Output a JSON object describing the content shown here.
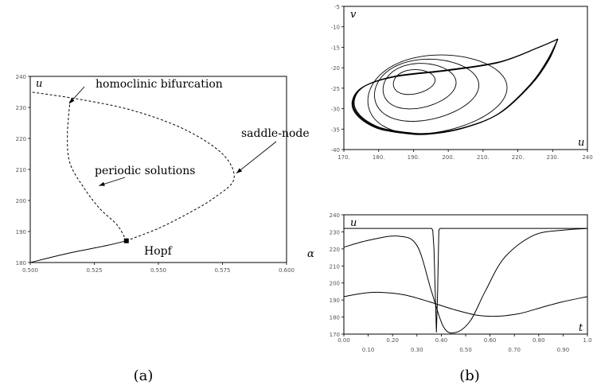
{
  "chart_data": [
    {
      "panel": "a",
      "type": "line",
      "caption": "(a)",
      "xlabel": "α",
      "ylabel": "u",
      "xlim": [
        0.5,
        0.6
      ],
      "ylim": [
        180,
        240
      ],
      "x_ticks": [
        "0.500",
        "0.525",
        "0.550",
        "0.575",
        "0.600"
      ],
      "y_ticks": [
        "180",
        "190",
        "200",
        "210",
        "220",
        "230",
        "240"
      ],
      "series": [
        {
          "style": "solid",
          "x": [
            0.5,
            0.515,
            0.53,
            0.5375
          ],
          "y": [
            180,
            183,
            185.5,
            187
          ]
        },
        {
          "style": "dashed",
          "x": [
            0.5375,
            0.55,
            0.562,
            0.572,
            0.5795,
            0.575,
            0.56,
            0.54,
            0.52,
            0.5
          ],
          "y": [
            187,
            191,
            196,
            201,
            207,
            215,
            223,
            229,
            232.5,
            235
          ]
        },
        {
          "style": "dashed",
          "x": [
            0.5375,
            0.534,
            0.527,
            0.521,
            0.5155,
            0.5145,
            0.5155
          ],
          "y": [
            187,
            192,
            197.5,
            204,
            212,
            221,
            232
          ]
        }
      ],
      "points": [
        {
          "label": "Hopf",
          "x": 0.5375,
          "y": 187
        }
      ],
      "annotations": [
        {
          "text": "homoclinic bifurcation",
          "x": 0.5155,
          "y": 232
        },
        {
          "text": "periodic solutions",
          "x": 0.5265,
          "y": 204
        },
        {
          "text": "saddle-node",
          "x": 0.5795,
          "y": 208
        },
        {
          "text": "Hopf",
          "x": 0.5385,
          "y": 183
        }
      ]
    },
    {
      "panel": "b-top",
      "type": "line",
      "xlabel": "u",
      "ylabel": "v",
      "xlim": [
        170,
        240
      ],
      "ylim": [
        -40,
        -5
      ],
      "x_ticks": [
        "170.",
        "180.",
        "190.",
        "200.",
        "210.",
        "220.",
        "230.",
        "240"
      ],
      "y_ticks": [
        "-5",
        "-10",
        "-15",
        "-20",
        "-25",
        "-30",
        "-35",
        "-40"
      ],
      "orbits": [
        {
          "ax": 6,
          "ay": 3,
          "c": [
            189.5,
            -23.5
          ]
        },
        {
          "ax": 10.5,
          "ay": 5.5,
          "c": [
            190.5,
            -24.5
          ]
        },
        {
          "ax": 15,
          "ay": 7.5,
          "c": [
            192,
            -25.5
          ]
        },
        {
          "ax": 20,
          "ay": 9.5,
          "c": [
            194.5,
            -26.5
          ]
        },
        {
          "homoclinic": true,
          "apex": [
            231.5,
            -13
          ],
          "bottom": [
            195,
            -36
          ],
          "left": [
            173,
            -28
          ]
        }
      ]
    },
    {
      "panel": "b-bottom",
      "type": "line",
      "caption": "(b)",
      "xlabel": "t",
      "ylabel": "u",
      "xlim": [
        0,
        1
      ],
      "ylim": [
        170,
        240
      ],
      "x_ticks_top": [
        "0.00",
        "0.20",
        "0.40",
        "0.60",
        "0.80",
        "1.0"
      ],
      "x_ticks_bottom": [
        "0.10",
        "0.30",
        "0.50",
        "0.70",
        "0.90"
      ],
      "y_ticks": [
        "170",
        "180",
        "190",
        "200",
        "210",
        "220",
        "230",
        "240"
      ],
      "series": [
        {
          "name": "",
          "x": [
            0,
            0.36,
            0.365,
            0.37,
            0.375,
            0.38,
            0.385,
            0.39,
            0.395,
            1.0
          ],
          "y": [
            232,
            232,
            231,
            220,
            195,
            171,
            195,
            231,
            232,
            232
          ]
        },
        {
          "name": "",
          "x": [
            0,
            0.1,
            0.22,
            0.3,
            0.36,
            0.41,
            0.46,
            0.52,
            0.58,
            0.66,
            0.78,
            0.9,
            1.0
          ],
          "y": [
            221,
            225,
            227.5,
            222,
            195,
            174,
            171,
            178,
            195,
            215,
            228,
            231,
            232
          ]
        },
        {
          "name": "",
          "x": [
            0,
            0.08,
            0.15,
            0.25,
            0.35,
            0.45,
            0.55,
            0.63,
            0.72,
            0.82,
            0.9,
            1.0
          ],
          "y": [
            192,
            194,
            194.5,
            193,
            189,
            184.5,
            181,
            180.5,
            182,
            186,
            189,
            192
          ]
        }
      ]
    }
  ]
}
